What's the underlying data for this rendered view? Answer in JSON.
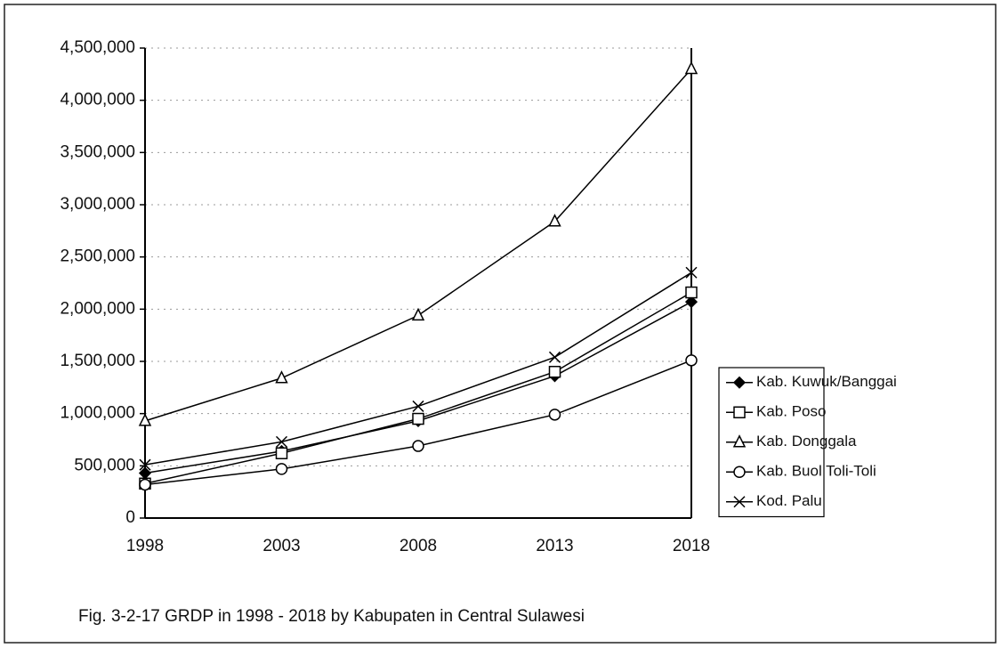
{
  "chart_data": {
    "type": "line",
    "caption": "Fig. 3-2-17 GRDP in 1998 - 2018 by Kabupaten in Central Sulawesi",
    "categories": [
      "1998",
      "2003",
      "2008",
      "2013",
      "2018"
    ],
    "series": [
      {
        "name": "Kab. Kuwuk/Banggai",
        "color": "#000000",
        "marker": "diamond",
        "values": [
          430000,
          640000,
          930000,
          1360000,
          2070000
        ]
      },
      {
        "name": "Kab. Poso",
        "color": "#000000",
        "marker": "square",
        "values": [
          330000,
          620000,
          950000,
          1400000,
          2160000
        ]
      },
      {
        "name": "Kab. Donggala",
        "color": "#000000",
        "marker": "triangle",
        "values": [
          930000,
          1340000,
          1940000,
          2840000,
          4300000
        ]
      },
      {
        "name": "Kab. Buol Toli-Toli",
        "color": "#000000",
        "marker": "circle",
        "values": [
          320000,
          470000,
          690000,
          990000,
          1510000
        ]
      },
      {
        "name": "Kod. Palu",
        "color": "#000000",
        "marker": "x",
        "values": [
          510000,
          730000,
          1070000,
          1540000,
          2350000
        ]
      }
    ],
    "ylim": [
      0,
      4500000
    ],
    "yticks": [
      0,
      {
        "value": 500000,
        "label": "500,000"
      },
      {
        "value": 1000000,
        "label": "1,000,000"
      },
      {
        "value": 1500000,
        "label": "1,500,000"
      },
      {
        "value": 2000000,
        "label": "2,000,000"
      },
      {
        "value": 2500000,
        "label": "2,500,000"
      },
      {
        "value": 3000000,
        "label": "3,000,000"
      },
      {
        "value": 3500000,
        "label": "3,500,000"
      },
      {
        "value": 4000000,
        "label": "4,000,000"
      },
      {
        "value": 4500000,
        "label": "4,500,000"
      }
    ],
    "grid": true,
    "legend": "right"
  }
}
